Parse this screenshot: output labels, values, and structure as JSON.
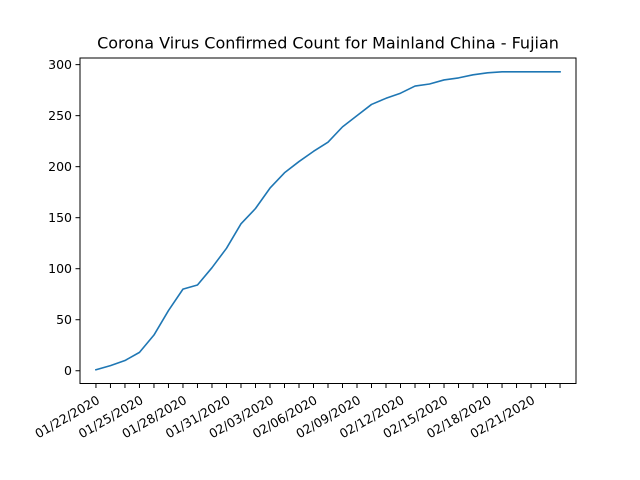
{
  "chart_data": {
    "type": "line",
    "title": "Corona Virus Confirmed Count for Mainland China - Fujian",
    "xlabel": "",
    "ylabel": "",
    "grid": false,
    "ylim": [
      -12.5,
      306.5
    ],
    "yticks": [
      0,
      50,
      100,
      150,
      200,
      250,
      300
    ],
    "xlim": [
      -1.1,
      33.1
    ],
    "xticks": [
      0,
      3,
      6,
      9,
      12,
      15,
      18,
      21,
      24,
      27,
      30
    ],
    "x": [
      "01/22/2020",
      "01/23/2020",
      "01/24/2020",
      "01/25/2020",
      "01/26/2020",
      "01/27/2020",
      "01/28/2020",
      "01/29/2020",
      "01/30/2020",
      "01/31/2020",
      "02/01/2020",
      "02/02/2020",
      "02/03/2020",
      "02/04/2020",
      "02/05/2020",
      "02/06/2020",
      "02/07/2020",
      "02/08/2020",
      "02/09/2020",
      "02/10/2020",
      "02/11/2020",
      "02/12/2020",
      "02/13/2020",
      "02/14/2020",
      "02/15/2020",
      "02/16/2020",
      "02/17/2020",
      "02/18/2020",
      "02/19/2020",
      "02/20/2020",
      "02/21/2020",
      "02/22/2020",
      "02/23/2020"
    ],
    "series": [
      {
        "values": [
          1,
          5,
          10,
          18,
          35,
          59,
          80,
          84,
          101,
          120,
          144,
          159,
          179,
          194,
          205,
          215,
          224,
          239,
          250,
          261,
          267,
          272,
          279,
          281,
          285,
          287,
          290,
          292,
          293,
          293,
          293,
          293,
          293
        ],
        "color": "#1f77b4"
      }
    ]
  }
}
